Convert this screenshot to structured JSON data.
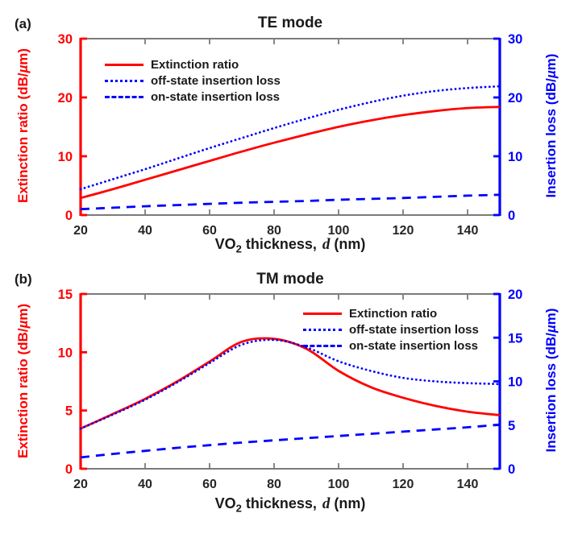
{
  "figure": {
    "panels": [
      {
        "panel_label": "(a)",
        "title": "TE mode",
        "ylabel_left": {
          "pre": "Extinction ratio (dB/",
          "mu": "µ",
          "post": "m)"
        },
        "ylabel_right": {
          "pre": "Insertion loss (dB/",
          "mu": "µ",
          "post": "m)"
        },
        "xlabel": {
          "pre": "VO",
          "sub": "2",
          "mid": " thickness,",
          "it": "d",
          "post": " (nm)"
        }
      },
      {
        "panel_label": "(b)",
        "title": "TM mode",
        "ylabel_left": {
          "pre": "Extinction ratio (dB/",
          "mu": "µ",
          "post": "m)"
        },
        "ylabel_right": {
          "pre": "Insertion loss (dB/",
          "mu": "µ",
          "post": "m)"
        },
        "xlabel": {
          "pre": "VO",
          "sub": "2",
          "mid": " thickness,",
          "it": "d",
          "post": " (nm)"
        }
      }
    ]
  },
  "colors": {
    "extinction_ratio": "#ff0000",
    "insertion_loss": "#0000ff",
    "frame": "#7b7b7b",
    "tick_label": "#262626",
    "text": "#1a1a1a"
  },
  "chart_data": [
    {
      "type": "line",
      "title": "TE mode",
      "xlabel": "VO2 thickness, d (nm)",
      "xlim": [
        20,
        150
      ],
      "xticks": [
        20,
        40,
        60,
        80,
        100,
        120,
        140
      ],
      "x": [
        20,
        30,
        40,
        50,
        60,
        70,
        80,
        90,
        100,
        110,
        120,
        130,
        140,
        150
      ],
      "axes": {
        "left": {
          "label": "Extinction ratio (dB/µm)",
          "lim": [
            0,
            30
          ],
          "ticks": [
            0,
            10,
            20,
            30
          ],
          "color": "#ff0000"
        },
        "right": {
          "label": "Insertion loss (dB/µm)",
          "lim": [
            0,
            30
          ],
          "ticks": [
            0,
            10,
            20,
            30
          ],
          "color": "#0000ff"
        }
      },
      "legend_position": "upper-left",
      "grid": false,
      "series": [
        {
          "name": "Extinction ratio",
          "axis": "left",
          "line": "solid",
          "color": "#ff0000",
          "values": [
            2.9,
            4.4,
            6.0,
            7.6,
            9.2,
            10.8,
            12.3,
            13.7,
            15.0,
            16.1,
            17.0,
            17.7,
            18.2,
            18.4
          ]
        },
        {
          "name": "off-state insertion loss",
          "axis": "right",
          "line": "dotted",
          "color": "#0000ff",
          "values": [
            4.4,
            6.1,
            7.8,
            9.6,
            11.4,
            13.1,
            14.8,
            16.4,
            17.9,
            19.2,
            20.3,
            21.1,
            21.6,
            21.9
          ]
        },
        {
          "name": "on-state insertion loss",
          "axis": "right",
          "line": "dashed",
          "color": "#0000ff",
          "values": [
            1.0,
            1.25,
            1.5,
            1.7,
            1.9,
            2.1,
            2.25,
            2.4,
            2.6,
            2.75,
            2.9,
            3.1,
            3.3,
            3.45
          ]
        }
      ]
    },
    {
      "type": "line",
      "title": "TM mode",
      "xlabel": "VO2 thickness, d (nm)",
      "xlim": [
        20,
        150
      ],
      "xticks": [
        20,
        40,
        60,
        80,
        100,
        120,
        140
      ],
      "x": [
        20,
        30,
        40,
        50,
        60,
        70,
        80,
        90,
        100,
        110,
        120,
        130,
        140,
        150
      ],
      "axes": {
        "left": {
          "label": "Extinction ratio (dB/µm)",
          "lim": [
            0,
            15
          ],
          "ticks": [
            0,
            5,
            10,
            15
          ],
          "color": "#ff0000"
        },
        "right": {
          "label": "Insertion loss (dB/µm)",
          "lim": [
            0,
            20
          ],
          "ticks": [
            0,
            5,
            10,
            15,
            20
          ],
          "color": "#0000ff"
        }
      },
      "legend_position": "upper-right",
      "grid": false,
      "series": [
        {
          "name": "Extinction ratio",
          "axis": "left",
          "line": "solid",
          "color": "#ff0000",
          "values": [
            3.45,
            4.7,
            6.0,
            7.5,
            9.2,
            10.9,
            11.15,
            10.3,
            8.4,
            7.0,
            6.1,
            5.4,
            4.9,
            4.6
          ]
        },
        {
          "name": "off-state insertion loss",
          "axis": "right",
          "line": "dotted",
          "color": "#0000ff",
          "values": [
            4.6,
            6.2,
            7.9,
            9.9,
            12.1,
            14.2,
            14.75,
            13.9,
            12.3,
            11.2,
            10.4,
            10.0,
            9.8,
            9.7
          ]
        },
        {
          "name": "on-state insertion loss",
          "axis": "right",
          "line": "dashed",
          "color": "#0000ff",
          "values": [
            1.3,
            1.7,
            2.05,
            2.4,
            2.7,
            3.0,
            3.25,
            3.5,
            3.75,
            4.0,
            4.25,
            4.5,
            4.75,
            5.05
          ]
        }
      ]
    }
  ]
}
